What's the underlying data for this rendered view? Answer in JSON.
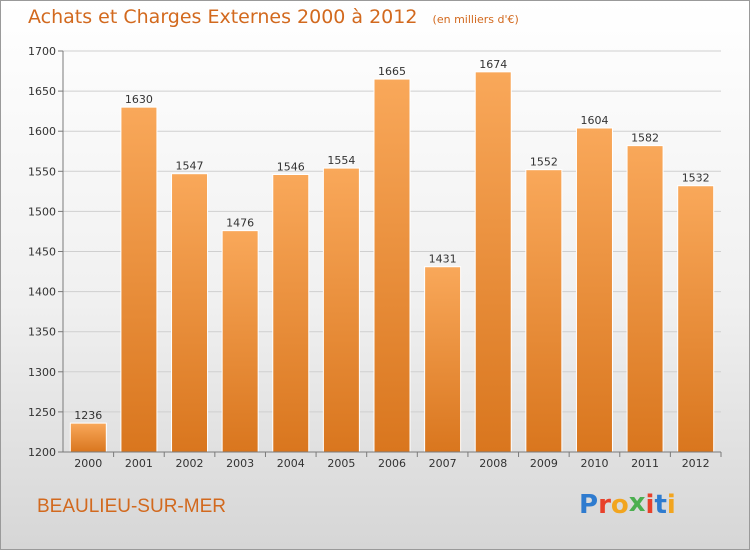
{
  "chart_data": {
    "type": "bar",
    "title": "Achats et Charges Externes 2000 à 2012",
    "subtitle": "(en milliers d'€)",
    "xlabel": "",
    "ylabel": "",
    "categories": [
      "2000",
      "2001",
      "2002",
      "2003",
      "2004",
      "2005",
      "2006",
      "2007",
      "2008",
      "2009",
      "2010",
      "2011",
      "2012"
    ],
    "values": [
      1236,
      1630,
      1547,
      1476,
      1546,
      1554,
      1665,
      1431,
      1674,
      1552,
      1604,
      1582,
      1532
    ],
    "ylim": [
      1200,
      1700
    ],
    "yticks": [
      1200,
      1250,
      1300,
      1350,
      1400,
      1450,
      1500,
      1550,
      1600,
      1650,
      1700
    ],
    "grid": true,
    "colors": {
      "bar_light": "#f9a85a",
      "bar_dark": "#d9761e",
      "title": "#d2691e"
    }
  },
  "footer": {
    "city": "BEAULIEU-SUR-MER",
    "logo_letters": [
      {
        "ch": "P",
        "color": "#2e7bcf"
      },
      {
        "ch": "r",
        "color": "#e8402a"
      },
      {
        "ch": "o",
        "color": "#f2a51f"
      },
      {
        "ch": "x",
        "color": "#4caf50"
      },
      {
        "ch": "i",
        "color": "#e8402a"
      },
      {
        "ch": "t",
        "color": "#2e7bcf"
      },
      {
        "ch": "i",
        "color": "#f2a51f"
      }
    ]
  }
}
